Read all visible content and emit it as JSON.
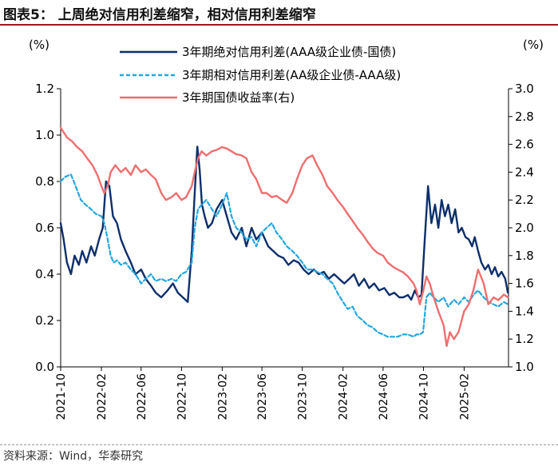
{
  "title": "图表5：  上周绝对信用利差缩窄，相对信用利差缩窄",
  "source": "资料来源：Wind，华泰研究",
  "colors": {
    "abs_spread": "#0d2f6b",
    "rel_spread": "#23a6df",
    "yield": "#ee6f6f",
    "title_rule": "#9b1c24"
  },
  "chart_data": {
    "type": "line",
    "y_left": {
      "unit": "(%)",
      "range": [
        0.0,
        1.2
      ],
      "ticks": [
        "0.0",
        "0.2",
        "0.4",
        "0.6",
        "0.8",
        "1.0",
        "1.2"
      ]
    },
    "y_right": {
      "unit": "(%)",
      "range": [
        1.0,
        3.0
      ],
      "ticks": [
        "1.0",
        "1.2",
        "1.4",
        "1.6",
        "1.8",
        "2.0",
        "2.2",
        "2.4",
        "2.6",
        "2.8",
        "3.0"
      ]
    },
    "x_range": [
      "2021-10-01",
      "2025-06-15"
    ],
    "x_ticks": [
      "2021-10",
      "2022-02",
      "2022-06",
      "2022-10",
      "2023-02",
      "2023-06",
      "2023-10",
      "2024-02",
      "2024-06",
      "2024-10",
      "2025-02"
    ],
    "grid": false,
    "legend_position": "top-center",
    "series": [
      {
        "name": "3年期绝对信用利差(AAA级企业债-国债)",
        "axis": "left",
        "style": "solid",
        "x": [
          "2021-10-01",
          "2021-10-10",
          "2021-10-20",
          "2021-11-01",
          "2021-11-12",
          "2021-11-25",
          "2021-12-05",
          "2021-12-18",
          "2022-01-01",
          "2022-01-12",
          "2022-01-25",
          "2022-02-05",
          "2022-02-15",
          "2022-02-25",
          "2022-03-08",
          "2022-03-20",
          "2022-04-01",
          "2022-04-15",
          "2022-05-01",
          "2022-05-15",
          "2022-06-01",
          "2022-06-15",
          "2022-07-01",
          "2022-07-15",
          "2022-08-01",
          "2022-08-20",
          "2022-09-05",
          "2022-09-20",
          "2022-10-05",
          "2022-10-20",
          "2022-11-01",
          "2022-11-10",
          "2022-11-18",
          "2022-11-25",
          "2022-12-02",
          "2022-12-10",
          "2022-12-20",
          "2023-01-01",
          "2023-01-15",
          "2023-02-01",
          "2023-02-15",
          "2023-03-01",
          "2023-03-15",
          "2023-04-01",
          "2023-04-15",
          "2023-05-01",
          "2023-05-15",
          "2023-06-01",
          "2023-06-20",
          "2023-07-05",
          "2023-07-20",
          "2023-08-05",
          "2023-08-20",
          "2023-09-05",
          "2023-09-20",
          "2023-10-05",
          "2023-10-20",
          "2023-11-05",
          "2023-11-20",
          "2023-12-05",
          "2023-12-20",
          "2024-01-05",
          "2024-01-20",
          "2024-02-05",
          "2024-02-20",
          "2024-03-05",
          "2024-03-20",
          "2024-04-05",
          "2024-04-20",
          "2024-05-05",
          "2024-05-20",
          "2024-06-05",
          "2024-06-20",
          "2024-07-05",
          "2024-07-20",
          "2024-08-01",
          "2024-08-15",
          "2024-08-25",
          "2024-09-05",
          "2024-09-15",
          "2024-09-25",
          "2024-10-05",
          "2024-10-15",
          "2024-10-25",
          "2024-11-05",
          "2024-11-15",
          "2024-11-25",
          "2024-12-05",
          "2024-12-15",
          "2024-12-25",
          "2025-01-05",
          "2025-01-15",
          "2025-01-25",
          "2025-02-05",
          "2025-02-15",
          "2025-02-25",
          "2025-03-05",
          "2025-03-15",
          "2025-03-25",
          "2025-04-05",
          "2025-04-15",
          "2025-04-25",
          "2025-05-05",
          "2025-05-15",
          "2025-05-25",
          "2025-06-05",
          "2025-06-13"
        ],
        "values": [
          0.62,
          0.55,
          0.45,
          0.4,
          0.48,
          0.44,
          0.5,
          0.45,
          0.52,
          0.48,
          0.55,
          0.6,
          0.8,
          0.78,
          0.65,
          0.62,
          0.55,
          0.5,
          0.45,
          0.4,
          0.42,
          0.38,
          0.35,
          0.32,
          0.3,
          0.33,
          0.36,
          0.32,
          0.3,
          0.28,
          0.5,
          0.75,
          0.95,
          0.85,
          0.7,
          0.65,
          0.6,
          0.62,
          0.68,
          0.72,
          0.65,
          0.58,
          0.55,
          0.6,
          0.52,
          0.6,
          0.55,
          0.58,
          0.52,
          0.5,
          0.48,
          0.47,
          0.44,
          0.46,
          0.45,
          0.42,
          0.4,
          0.42,
          0.4,
          0.41,
          0.38,
          0.4,
          0.38,
          0.36,
          0.38,
          0.4,
          0.35,
          0.38,
          0.34,
          0.36,
          0.33,
          0.34,
          0.31,
          0.32,
          0.3,
          0.3,
          0.31,
          0.29,
          0.33,
          0.3,
          0.31,
          0.55,
          0.78,
          0.62,
          0.7,
          0.6,
          0.72,
          0.65,
          0.7,
          0.62,
          0.68,
          0.58,
          0.6,
          0.56,
          0.55,
          0.52,
          0.56,
          0.5,
          0.45,
          0.42,
          0.44,
          0.4,
          0.43,
          0.39,
          0.41,
          0.38,
          0.32
        ]
      },
      {
        "name": "3年期相对信用利差(AA级企业债-AAA级)",
        "axis": "left",
        "style": "dashed",
        "x": [
          "2021-10-01",
          "2021-10-15",
          "2021-11-01",
          "2021-11-15",
          "2021-12-01",
          "2021-12-15",
          "2022-01-01",
          "2022-01-15",
          "2022-02-01",
          "2022-02-10",
          "2022-02-20",
          "2022-03-01",
          "2022-03-10",
          "2022-03-20",
          "2022-04-01",
          "2022-04-15",
          "2022-05-01",
          "2022-05-15",
          "2022-06-01",
          "2022-06-15",
          "2022-07-01",
          "2022-07-15",
          "2022-08-01",
          "2022-08-15",
          "2022-09-01",
          "2022-09-15",
          "2022-10-01",
          "2022-10-15",
          "2022-11-01",
          "2022-11-10",
          "2022-11-20",
          "2022-12-01",
          "2022-12-15",
          "2023-01-01",
          "2023-01-15",
          "2023-02-01",
          "2023-02-15",
          "2023-03-01",
          "2023-03-15",
          "2023-04-01",
          "2023-04-15",
          "2023-05-01",
          "2023-05-15",
          "2023-06-01",
          "2023-06-15",
          "2023-07-01",
          "2023-07-15",
          "2023-08-01",
          "2023-08-15",
          "2023-09-01",
          "2023-09-15",
          "2023-10-01",
          "2023-10-15",
          "2023-11-01",
          "2023-11-15",
          "2023-12-01",
          "2023-12-15",
          "2024-01-01",
          "2024-01-15",
          "2024-02-01",
          "2024-02-15",
          "2024-03-01",
          "2024-03-15",
          "2024-04-01",
          "2024-04-15",
          "2024-05-01",
          "2024-05-15",
          "2024-06-01",
          "2024-06-15",
          "2024-07-01",
          "2024-07-15",
          "2024-08-01",
          "2024-08-15",
          "2024-09-01",
          "2024-09-10",
          "2024-09-20",
          "2024-09-30",
          "2024-10-10",
          "2024-10-20",
          "2024-11-01",
          "2024-11-15",
          "2024-12-01",
          "2024-12-15",
          "2025-01-01",
          "2025-01-15",
          "2025-02-01",
          "2025-02-15",
          "2025-03-01",
          "2025-03-15",
          "2025-04-01",
          "2025-04-15",
          "2025-05-01",
          "2025-05-15",
          "2025-06-01",
          "2025-06-13"
        ],
        "values": [
          0.8,
          0.82,
          0.83,
          0.78,
          0.72,
          0.7,
          0.68,
          0.66,
          0.65,
          0.62,
          0.55,
          0.48,
          0.45,
          0.46,
          0.44,
          0.45,
          0.42,
          0.4,
          0.36,
          0.38,
          0.4,
          0.37,
          0.38,
          0.37,
          0.38,
          0.37,
          0.4,
          0.41,
          0.45,
          0.6,
          0.68,
          0.7,
          0.72,
          0.68,
          0.65,
          0.7,
          0.75,
          0.65,
          0.6,
          0.58,
          0.55,
          0.56,
          0.52,
          0.58,
          0.6,
          0.62,
          0.58,
          0.55,
          0.52,
          0.5,
          0.48,
          0.45,
          0.42,
          0.42,
          0.41,
          0.4,
          0.38,
          0.36,
          0.32,
          0.28,
          0.25,
          0.26,
          0.22,
          0.2,
          0.18,
          0.17,
          0.15,
          0.14,
          0.13,
          0.13,
          0.13,
          0.14,
          0.14,
          0.13,
          0.14,
          0.14,
          0.15,
          0.3,
          0.32,
          0.3,
          0.28,
          0.3,
          0.26,
          0.29,
          0.27,
          0.3,
          0.28,
          0.31,
          0.33,
          0.3,
          0.28,
          0.27,
          0.26,
          0.28,
          0.27
        ]
      },
      {
        "name": "3年期国债收益率(右)",
        "axis": "right",
        "style": "solid",
        "x": [
          "2021-10-01",
          "2021-10-20",
          "2021-11-05",
          "2021-11-20",
          "2021-12-05",
          "2021-12-20",
          "2022-01-05",
          "2022-01-20",
          "2022-02-01",
          "2022-02-10",
          "2022-02-20",
          "2022-03-01",
          "2022-03-15",
          "2022-04-01",
          "2022-04-15",
          "2022-05-01",
          "2022-05-15",
          "2022-06-01",
          "2022-06-15",
          "2022-07-01",
          "2022-07-15",
          "2022-08-01",
          "2022-08-15",
          "2022-09-01",
          "2022-09-15",
          "2022-10-01",
          "2022-10-15",
          "2022-11-01",
          "2022-11-10",
          "2022-11-20",
          "2022-12-01",
          "2022-12-15",
          "2023-01-01",
          "2023-01-15",
          "2023-02-01",
          "2023-02-15",
          "2023-03-01",
          "2023-03-15",
          "2023-04-01",
          "2023-04-15",
          "2023-05-01",
          "2023-05-15",
          "2023-06-01",
          "2023-06-15",
          "2023-07-01",
          "2023-07-15",
          "2023-08-01",
          "2023-08-15",
          "2023-09-01",
          "2023-09-15",
          "2023-10-01",
          "2023-10-15",
          "2023-11-01",
          "2023-11-15",
          "2023-12-01",
          "2023-12-15",
          "2024-01-01",
          "2024-01-15",
          "2024-02-01",
          "2024-02-15",
          "2024-03-01",
          "2024-03-15",
          "2024-04-01",
          "2024-04-15",
          "2024-05-01",
          "2024-05-15",
          "2024-06-01",
          "2024-06-15",
          "2024-07-01",
          "2024-07-15",
          "2024-08-01",
          "2024-08-15",
          "2024-09-01",
          "2024-09-10",
          "2024-09-20",
          "2024-10-01",
          "2024-10-10",
          "2024-10-20",
          "2024-11-01",
          "2024-11-15",
          "2024-12-01",
          "2024-12-10",
          "2024-12-20",
          "2025-01-01",
          "2025-01-15",
          "2025-02-01",
          "2025-02-15",
          "2025-03-01",
          "2025-03-15",
          "2025-04-01",
          "2025-04-15",
          "2025-05-01",
          "2025-05-15",
          "2025-06-01",
          "2025-06-13"
        ],
        "values": [
          2.72,
          2.65,
          2.62,
          2.58,
          2.55,
          2.5,
          2.45,
          2.38,
          2.3,
          2.25,
          2.3,
          2.4,
          2.45,
          2.4,
          2.43,
          2.38,
          2.45,
          2.4,
          2.42,
          2.38,
          2.35,
          2.25,
          2.2,
          2.22,
          2.25,
          2.2,
          2.22,
          2.3,
          2.4,
          2.5,
          2.55,
          2.52,
          2.55,
          2.56,
          2.58,
          2.57,
          2.55,
          2.53,
          2.52,
          2.5,
          2.4,
          2.35,
          2.25,
          2.25,
          2.22,
          2.23,
          2.2,
          2.18,
          2.25,
          2.35,
          2.45,
          2.5,
          2.52,
          2.45,
          2.38,
          2.3,
          2.25,
          2.2,
          2.15,
          2.1,
          2.05,
          2.0,
          1.95,
          1.9,
          1.85,
          1.82,
          1.8,
          1.75,
          1.72,
          1.7,
          1.68,
          1.65,
          1.6,
          1.55,
          1.45,
          1.55,
          1.65,
          1.6,
          1.5,
          1.4,
          1.3,
          1.15,
          1.25,
          1.2,
          1.25,
          1.4,
          1.45,
          1.55,
          1.7,
          1.6,
          1.45,
          1.5,
          1.48,
          1.52,
          1.5
        ]
      }
    ]
  }
}
